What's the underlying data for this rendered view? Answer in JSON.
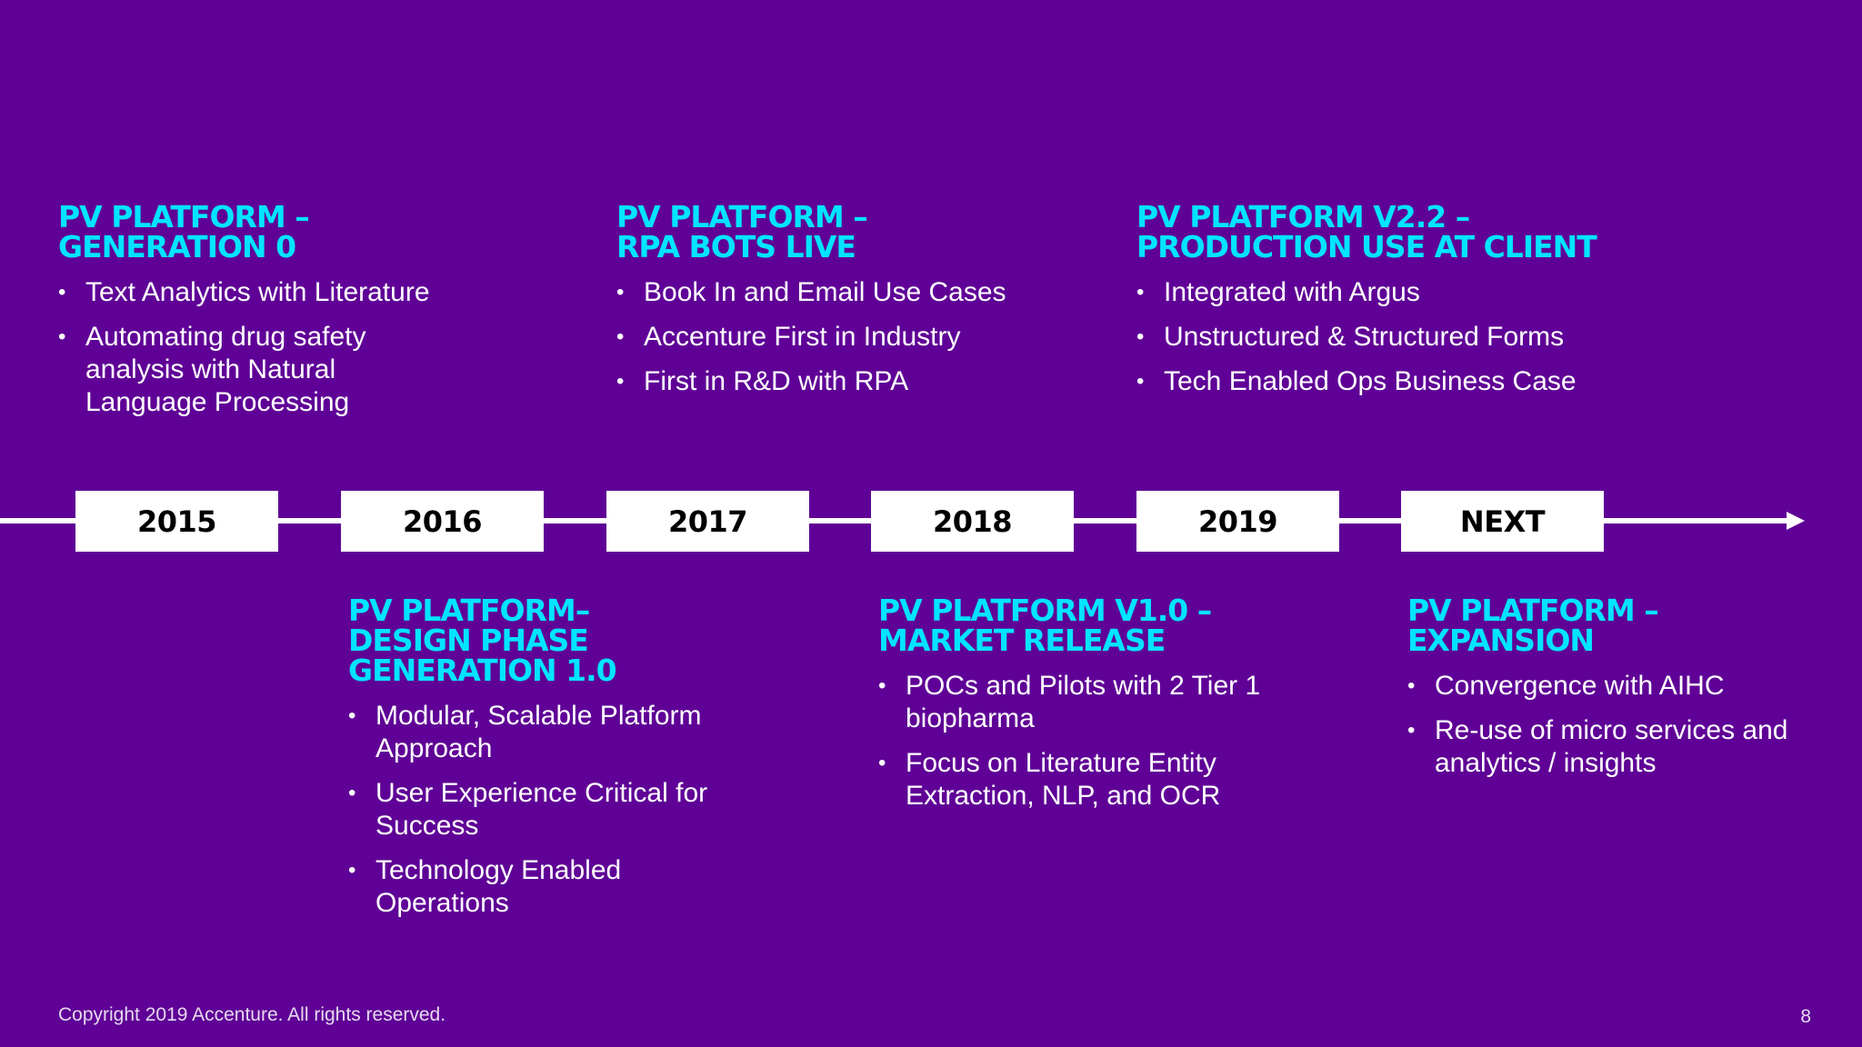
{
  "top_blocks": [
    {
      "title": [
        "PV PLATFORM –",
        "GENERATION 0"
      ],
      "bullets": [
        "Text Analytics with Literature",
        "Automating drug safety analysis with Natural Language Processing"
      ]
    },
    {
      "title": [
        "PV PLATFORM –",
        "RPA BOTS LIVE"
      ],
      "bullets": [
        "Book In and Email Use Cases",
        "Accenture First in Industry",
        "First in R&D with RPA"
      ]
    },
    {
      "title": [
        "PV PLATFORM V2.2 –",
        "PRODUCTION USE AT CLIENT"
      ],
      "bullets": [
        "Integrated with Argus",
        "Unstructured & Structured Forms",
        "Tech Enabled Ops Business Case"
      ]
    }
  ],
  "timeline": {
    "years": [
      "2015",
      "2016",
      "2017",
      "2018",
      "2019",
      "NEXT"
    ]
  },
  "bottom_blocks": [
    {
      "title": [
        "PV PLATFORM–",
        "DESIGN PHASE",
        "GENERATION 1.0"
      ],
      "bullets": [
        "Modular, Scalable Platform Approach",
        "User Experience Critical for Success",
        "Technology Enabled Operations"
      ]
    },
    {
      "title": [
        "PV PLATFORM V1.0 –",
        "MARKET RELEASE"
      ],
      "bullets": [
        "POCs and Pilots with 2 Tier 1 biopharma",
        "Focus on Literature Entity Extraction, NLP, and OCR"
      ]
    },
    {
      "title": [
        "PV PLATFORM –",
        "EXPANSION"
      ],
      "bullets": [
        "Convergence with AIHC",
        "Re-use of micro services and analytics / insights"
      ]
    }
  ],
  "footer": {
    "copyright": "Copyright 2019 Accenture. All rights reserved.",
    "page_number": "8"
  }
}
